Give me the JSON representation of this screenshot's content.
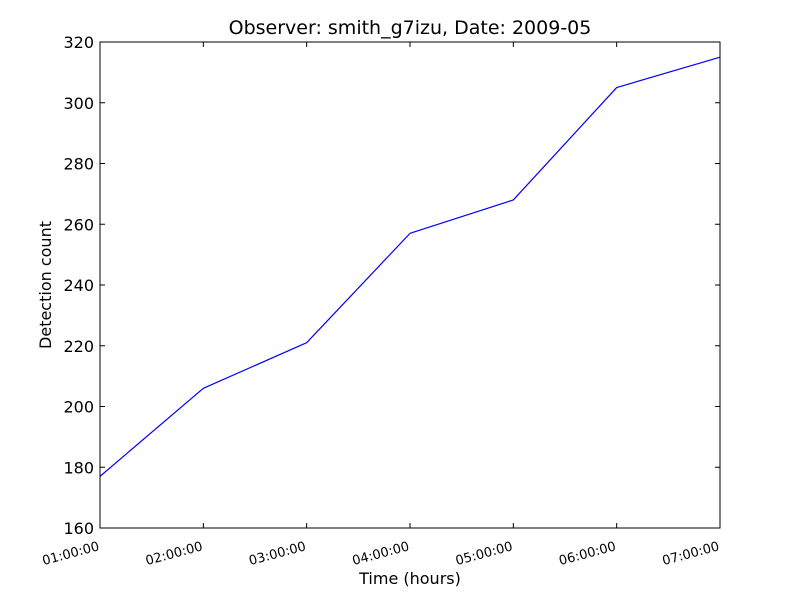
{
  "chart_data": {
    "type": "line",
    "title": "Observer: smith_g7izu, Date: 2009-05",
    "xlabel": "Time (hours)",
    "ylabel": "Detection count",
    "x": [
      "01:00:00",
      "02:00:00",
      "03:00:00",
      "04:00:00",
      "05:00:00",
      "06:00:00",
      "07:00:00"
    ],
    "xticks": [
      "01:00:00",
      "02:00:00",
      "03:00:00",
      "04:00:00",
      "05:00:00",
      "06:00:00",
      "07:00:00"
    ],
    "ylim": [
      160,
      320
    ],
    "yticks": [
      160,
      180,
      200,
      220,
      240,
      260,
      280,
      300,
      320
    ],
    "series": [
      {
        "values": [
          177,
          206,
          221,
          257,
          268,
          305,
          315
        ],
        "color": "#0000ff"
      }
    ],
    "grid": false,
    "legend": "none"
  }
}
